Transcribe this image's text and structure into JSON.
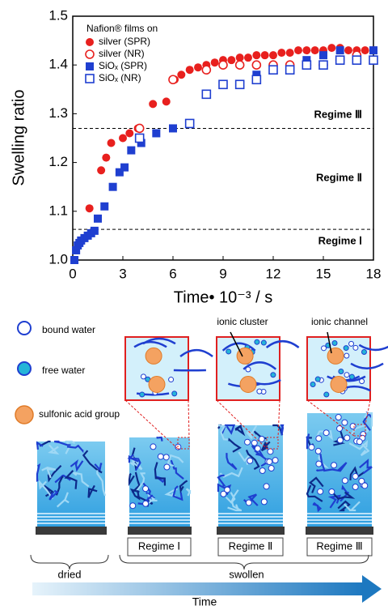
{
  "chart_data": {
    "type": "scatter",
    "x_label": "Time• 10⁻³ / s",
    "y_label": "Swelling ratio",
    "xlim": [
      0,
      18
    ],
    "xticks": [
      0,
      3,
      6,
      9,
      12,
      15,
      18
    ],
    "ylim": [
      1,
      1.5
    ],
    "yticks": [
      {
        "value": 1,
        "label": "1.0"
      },
      1.1,
      1.2,
      1.3,
      1.4,
      1.5
    ],
    "legend_title": "Nafion® films on",
    "legend": "upper left",
    "reference_lines": [
      1.27,
      1.063
    ],
    "annotations": [
      "Regime Ⅲ",
      "Regime Ⅱ",
      "Regime Ⅰ"
    ],
    "series": [
      {
        "name": "silver (SPR)",
        "color": "#e8201e",
        "marker": "circle",
        "filled": true,
        "x": [
          0.1,
          1.0,
          1.7,
          2.0,
          2.3,
          3.0,
          3.4,
          3.9,
          4.8,
          5.6,
          6.1,
          6.5,
          7,
          7.5,
          8,
          8.5,
          9,
          9.5,
          10,
          10.5,
          11,
          11.5,
          12,
          12.5,
          13,
          13.5,
          14,
          14.5,
          15,
          15.5,
          16,
          16.5,
          17,
          17.5,
          18
        ],
        "values": [
          1.0,
          1.106,
          1.184,
          1.21,
          1.24,
          1.25,
          1.26,
          1.27,
          1.32,
          1.325,
          1.37,
          1.38,
          1.39,
          1.395,
          1.4,
          1.405,
          1.41,
          1.41,
          1.415,
          1.415,
          1.42,
          1.42,
          1.42,
          1.425,
          1.425,
          1.43,
          1.43,
          1.43,
          1.43,
          1.435,
          1.435,
          1.43,
          1.43,
          1.43,
          1.43
        ]
      },
      {
        "name": "silver (NR)",
        "color": "#e8201e",
        "marker": "circle",
        "filled": false,
        "x": [
          4,
          6,
          8,
          9,
          10,
          11,
          12,
          13,
          14,
          15,
          16,
          17
        ],
        "values": [
          1.27,
          1.37,
          1.39,
          1.4,
          1.4,
          1.4,
          1.4,
          1.4,
          1.4,
          1.4,
          1.41,
          1.42
        ]
      },
      {
        "name": "SiOₓ (SPR)",
        "color": "#1f3fd0",
        "marker": "square",
        "filled": true,
        "x": [
          0.1,
          0.2,
          0.3,
          0.4,
          0.5,
          0.7,
          0.9,
          1.1,
          1.3,
          1.5,
          1.9,
          2.4,
          2.8,
          3.1,
          3.5,
          4.1,
          5,
          6,
          7,
          11,
          13,
          14,
          15,
          16,
          18
        ],
        "values": [
          1.0,
          1.02,
          1.03,
          1.035,
          1.04,
          1.045,
          1.05,
          1.055,
          1.06,
          1.085,
          1.11,
          1.15,
          1.18,
          1.19,
          1.225,
          1.24,
          1.26,
          1.27,
          1.28,
          1.38,
          1.39,
          1.41,
          1.42,
          1.43,
          1.43
        ]
      },
      {
        "name": "SiOₓ (NR)",
        "color": "#1f3fd0",
        "marker": "square",
        "filled": false,
        "x": [
          4,
          7,
          8,
          9,
          10,
          11,
          12,
          13,
          14,
          15,
          16,
          17,
          18
        ],
        "values": [
          1.25,
          1.28,
          1.34,
          1.36,
          1.36,
          1.37,
          1.39,
          1.39,
          1.4,
          1.4,
          1.41,
          1.41,
          1.41
        ]
      }
    ]
  },
  "diagram": {
    "legend": [
      "bound water",
      "free water",
      "sulfonic acid group"
    ],
    "callouts": [
      "ionic cluster",
      "ionic channel"
    ],
    "stages": [
      "Regime Ⅰ",
      "Regime Ⅱ",
      "Regime Ⅲ"
    ],
    "groups": [
      "dried",
      "swollen"
    ],
    "arrow_label": "Time"
  }
}
